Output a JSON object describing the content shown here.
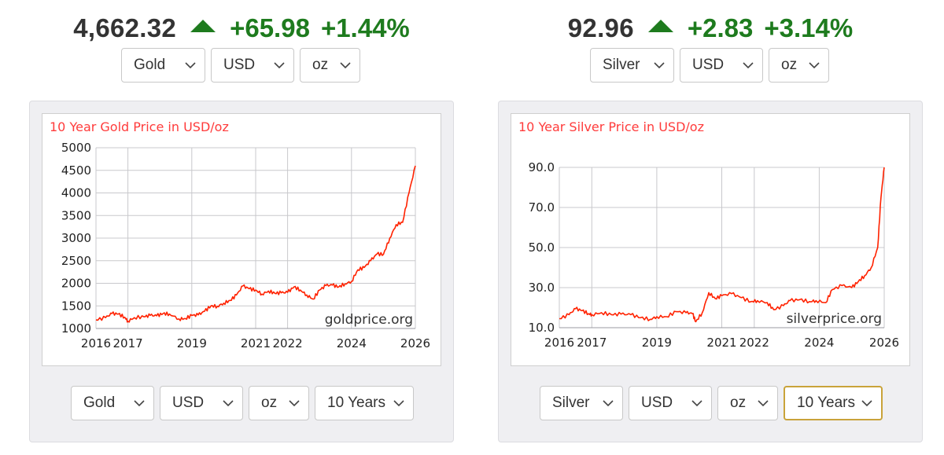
{
  "gold": {
    "price": "4,662.32",
    "change": "+65.98",
    "change_pct": "+1.44%",
    "top_selects": {
      "metal": "Gold",
      "currency": "USD",
      "unit": "oz"
    },
    "bottom_selects": {
      "metal": "Gold",
      "currency": "USD",
      "unit": "oz",
      "range": "10 Years"
    },
    "watermark": "goldprice.org"
  },
  "silver": {
    "price": "92.96",
    "change": "+2.83",
    "change_pct": "+3.14%",
    "top_selects": {
      "metal": "Silver",
      "currency": "USD",
      "unit": "oz"
    },
    "bottom_selects": {
      "metal": "Silver",
      "currency": "USD",
      "unit": "oz",
      "range": "10 Years"
    },
    "watermark": "silverprice.org"
  },
  "colors": {
    "up": "#1e7b1e",
    "line": "#ff2200",
    "title": "#ff3b3b",
    "grid": "#c8c8cc"
  },
  "chart_data": [
    {
      "type": "line",
      "title": "10 Year Gold Price in USD/oz",
      "xlabel": "",
      "ylabel": "",
      "x_ticks": [
        "2016",
        "2017",
        "2019",
        "2021",
        "2022",
        "2024",
        "2026"
      ],
      "x_tick_values": [
        2016,
        2017,
        2019,
        2021,
        2022,
        2024,
        2026
      ],
      "xlim": [
        2016,
        2026
      ],
      "y_ticks": [
        "5000",
        "4500",
        "4000",
        "3500",
        "3000",
        "2500",
        "2000",
        "1500",
        "1000"
      ],
      "ylim": [
        1000,
        5000
      ],
      "grid": true,
      "series": [
        {
          "x": [
            2016.0,
            2016.3,
            2016.5,
            2016.7,
            2016.9,
            2017.0,
            2017.2,
            2017.5,
            2017.7,
            2017.9,
            2018.1,
            2018.3,
            2018.6,
            2018.8,
            2019.0,
            2019.2,
            2019.4,
            2019.6,
            2019.8,
            2020.0,
            2020.2,
            2020.4,
            2020.6,
            2020.8,
            2021.0,
            2021.2,
            2021.4,
            2021.6,
            2021.8,
            2022.0,
            2022.2,
            2022.4,
            2022.6,
            2022.8,
            2023.0,
            2023.2,
            2023.4,
            2023.6,
            2023.8,
            2024.0,
            2024.2,
            2024.4,
            2024.6,
            2024.8,
            2025.0,
            2025.2,
            2025.4,
            2025.6,
            2025.8,
            2026.0
          ],
          "y": [
            1190,
            1240,
            1330,
            1320,
            1250,
            1160,
            1240,
            1260,
            1290,
            1280,
            1330,
            1320,
            1210,
            1220,
            1290,
            1300,
            1380,
            1500,
            1490,
            1560,
            1620,
            1740,
            1940,
            1880,
            1850,
            1760,
            1830,
            1780,
            1790,
            1800,
            1920,
            1850,
            1740,
            1650,
            1850,
            1950,
            1960,
            1920,
            1990,
            2040,
            2300,
            2350,
            2500,
            2650,
            2640,
            3000,
            3300,
            3350,
            4000,
            4600
          ]
        }
      ]
    },
    {
      "type": "line",
      "title": "10 Year Silver Price in USD/oz",
      "xlabel": "",
      "ylabel": "",
      "x_ticks": [
        "2016",
        "2017",
        "2019",
        "2021",
        "2022",
        "2024",
        "2026"
      ],
      "x_tick_values": [
        2016,
        2017,
        2019,
        2021,
        2022,
        2024,
        2026
      ],
      "xlim": [
        2016,
        2026
      ],
      "y_ticks": [
        "90.0",
        "70.0",
        "50.0",
        "30.0",
        "10.0"
      ],
      "ylim": [
        10,
        90
      ],
      "grid": true,
      "series": [
        {
          "x": [
            2016.0,
            2016.3,
            2016.5,
            2016.7,
            2016.9,
            2017.0,
            2017.3,
            2017.6,
            2017.9,
            2018.2,
            2018.5,
            2018.8,
            2019.0,
            2019.3,
            2019.6,
            2019.9,
            2020.1,
            2020.2,
            2020.4,
            2020.6,
            2020.8,
            2021.0,
            2021.3,
            2021.6,
            2021.9,
            2022.1,
            2022.4,
            2022.6,
            2022.9,
            2023.1,
            2023.4,
            2023.7,
            2023.9,
            2024.2,
            2024.4,
            2024.7,
            2025.0,
            2025.2,
            2025.4,
            2025.6,
            2025.8,
            2025.9,
            2026.0
          ],
          "y": [
            14.5,
            16.5,
            19.5,
            18.5,
            17.0,
            16.5,
            17.5,
            16.5,
            16.8,
            16.5,
            15.0,
            14.2,
            15.5,
            15.5,
            18.0,
            17.5,
            17.0,
            13.0,
            17.5,
            27.5,
            24.5,
            26.0,
            27.0,
            25.0,
            23.0,
            23.5,
            22.5,
            19.0,
            21.0,
            23.5,
            24.0,
            23.0,
            23.5,
            22.5,
            29.0,
            31.0,
            30.0,
            33.0,
            36.0,
            40.0,
            50.0,
            75.0,
            90.0
          ]
        }
      ]
    }
  ]
}
